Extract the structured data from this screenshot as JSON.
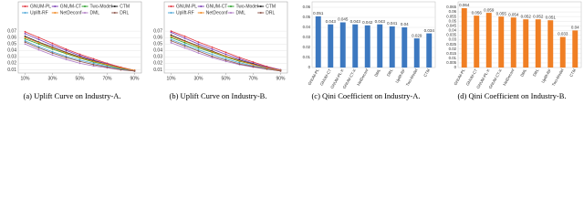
{
  "chart_data": [
    {
      "type": "line",
      "caption": "(a) Uplift Curve on Industry-A.",
      "legend": "top",
      "grid": true,
      "x": [
        10,
        20,
        30,
        40,
        50,
        60,
        70,
        80,
        90
      ],
      "xlim": [
        5,
        95
      ],
      "xticks": [
        {
          "value": 10,
          "label": "10%"
        },
        {
          "value": 30,
          "label": "30%"
        },
        {
          "value": 50,
          "label": "50%"
        },
        {
          "value": 70,
          "label": "70%"
        },
        {
          "value": 90,
          "label": "90%"
        }
      ],
      "ylim": [
        0.005,
        0.09
      ],
      "yticks": [
        0.01,
        0.02,
        0.03,
        0.04,
        0.05,
        0.06,
        0.07
      ],
      "series": [
        {
          "name": "GNUM-PL",
          "color": "#e0303a",
          "values": [
            0.069,
            0.06,
            0.051,
            0.042,
            0.034,
            0.027,
            0.02,
            0.014,
            0.009
          ]
        },
        {
          "name": "GNUM-CT",
          "color": "#7b3fb5",
          "values": [
            0.066,
            0.057,
            0.048,
            0.04,
            0.032,
            0.025,
            0.019,
            0.013,
            0.009
          ]
        },
        {
          "name": "Two-Model",
          "color": "#2ca02c",
          "values": [
            0.058,
            0.05,
            0.042,
            0.035,
            0.028,
            0.022,
            0.017,
            0.012,
            0.008
          ]
        },
        {
          "name": "CTM",
          "color": "#222222",
          "values": [
            0.062,
            0.053,
            0.045,
            0.037,
            0.03,
            0.024,
            0.018,
            0.013,
            0.009
          ]
        },
        {
          "name": "Uplift-RF",
          "color": "#4fa8d8",
          "values": [
            0.055,
            0.046,
            0.038,
            0.031,
            0.025,
            0.02,
            0.015,
            0.011,
            0.008
          ]
        },
        {
          "name": "NetDeconf",
          "color": "#f08a24",
          "values": [
            0.06,
            0.052,
            0.044,
            0.036,
            0.029,
            0.023,
            0.018,
            0.013,
            0.009
          ]
        },
        {
          "name": "DML",
          "color": "#b07cc6",
          "values": [
            0.05,
            0.041,
            0.033,
            0.026,
            0.02,
            0.016,
            0.013,
            0.01,
            0.008
          ]
        },
        {
          "name": "DRL",
          "color": "#8c564b",
          "values": [
            0.053,
            0.044,
            0.036,
            0.029,
            0.023,
            0.018,
            0.014,
            0.01,
            0.008
          ]
        }
      ]
    },
    {
      "type": "line",
      "caption": "(b) Uplift Curve on Industry-B.",
      "legend": "top",
      "grid": true,
      "x": [
        10,
        20,
        30,
        40,
        50,
        60,
        70,
        80,
        90
      ],
      "xlim": [
        5,
        95
      ],
      "xticks": [
        {
          "value": 10,
          "label": "10%"
        },
        {
          "value": 30,
          "label": "30%"
        },
        {
          "value": 50,
          "label": "50%"
        },
        {
          "value": 70,
          "label": "70%"
        },
        {
          "value": 90,
          "label": "90%"
        }
      ],
      "ylim": [
        0.005,
        0.09
      ],
      "yticks": [
        0.01,
        0.02,
        0.03,
        0.04,
        0.05,
        0.06,
        0.07
      ],
      "series": [
        {
          "name": "GNUM-PL",
          "color": "#e0303a",
          "values": [
            0.07,
            0.062,
            0.053,
            0.045,
            0.037,
            0.029,
            0.022,
            0.015,
            0.01
          ]
        },
        {
          "name": "GNUM-CT",
          "color": "#7b3fb5",
          "values": [
            0.068,
            0.059,
            0.05,
            0.042,
            0.034,
            0.027,
            0.02,
            0.014,
            0.01
          ]
        },
        {
          "name": "Two-Model",
          "color": "#2ca02c",
          "values": [
            0.06,
            0.052,
            0.044,
            0.037,
            0.03,
            0.023,
            0.018,
            0.013,
            0.009
          ]
        },
        {
          "name": "CTM",
          "color": "#222222",
          "values": [
            0.064,
            0.055,
            0.047,
            0.039,
            0.031,
            0.025,
            0.019,
            0.013,
            0.009
          ]
        },
        {
          "name": "Uplift-RF",
          "color": "#4fa8d8",
          "values": [
            0.057,
            0.049,
            0.041,
            0.034,
            0.027,
            0.021,
            0.016,
            0.012,
            0.009
          ]
        },
        {
          "name": "NetDeconf",
          "color": "#f08a24",
          "values": [
            0.062,
            0.054,
            0.046,
            0.038,
            0.031,
            0.024,
            0.018,
            0.013,
            0.009
          ]
        },
        {
          "name": "DML",
          "color": "#b07cc6",
          "values": [
            0.052,
            0.044,
            0.036,
            0.029,
            0.023,
            0.018,
            0.014,
            0.011,
            0.008
          ]
        },
        {
          "name": "DRL",
          "color": "#8c564b",
          "values": [
            0.055,
            0.047,
            0.039,
            0.031,
            0.025,
            0.019,
            0.015,
            0.011,
            0.008
          ]
        }
      ]
    },
    {
      "type": "bar",
      "caption": "(c) Qini Coefficient on Industry-A.",
      "color": "#3c78c0",
      "grid": true,
      "categories": [
        "GNUM-PL",
        "GNUM-CT",
        "GNUM-PL-X",
        "GNUM-CT-X",
        "NetDeconf",
        "DML",
        "DRL",
        "Uplift-RF",
        "Two-Model",
        "CTM"
      ],
      "values": [
        0.051,
        0.043,
        0.045,
        0.043,
        0.042,
        0.043,
        0.041,
        0.04,
        0.029,
        0.034
      ],
      "ylim": [
        0,
        0.06
      ],
      "yticks": [
        0,
        0.01,
        0.02,
        0.03,
        0.04,
        0.05,
        0.06
      ]
    },
    {
      "type": "bar",
      "caption": "(d) Qini Coefficient on Industry-B.",
      "color": "#f07f24",
      "grid": true,
      "categories": [
        "GNUM-PL",
        "GNUM-CT",
        "GNUM-PL-X",
        "GNUM-CT-X",
        "NetDeconf",
        "DML",
        "DRL",
        "Uplift-RF",
        "Two-Model",
        "CTM"
      ],
      "values": [
        0.064,
        0.056,
        0.059,
        0.055,
        0.054,
        0.052,
        0.052,
        0.051,
        0.033,
        0.04
      ],
      "ylim": [
        0,
        0.065
      ],
      "yticks": [
        0,
        0.005,
        0.01,
        0.015,
        0.02,
        0.025,
        0.03,
        0.035,
        0.04,
        0.045,
        0.05,
        0.055,
        0.06,
        0.065
      ]
    }
  ]
}
